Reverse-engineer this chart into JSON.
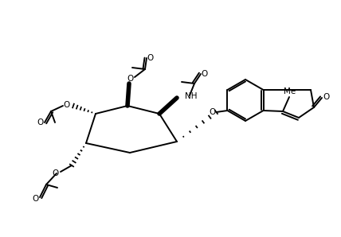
{
  "bg": "#ffffff",
  "lc": "#000000",
  "lw": 1.4,
  "fw": 4.28,
  "fh": 2.98,
  "dpi": 100
}
